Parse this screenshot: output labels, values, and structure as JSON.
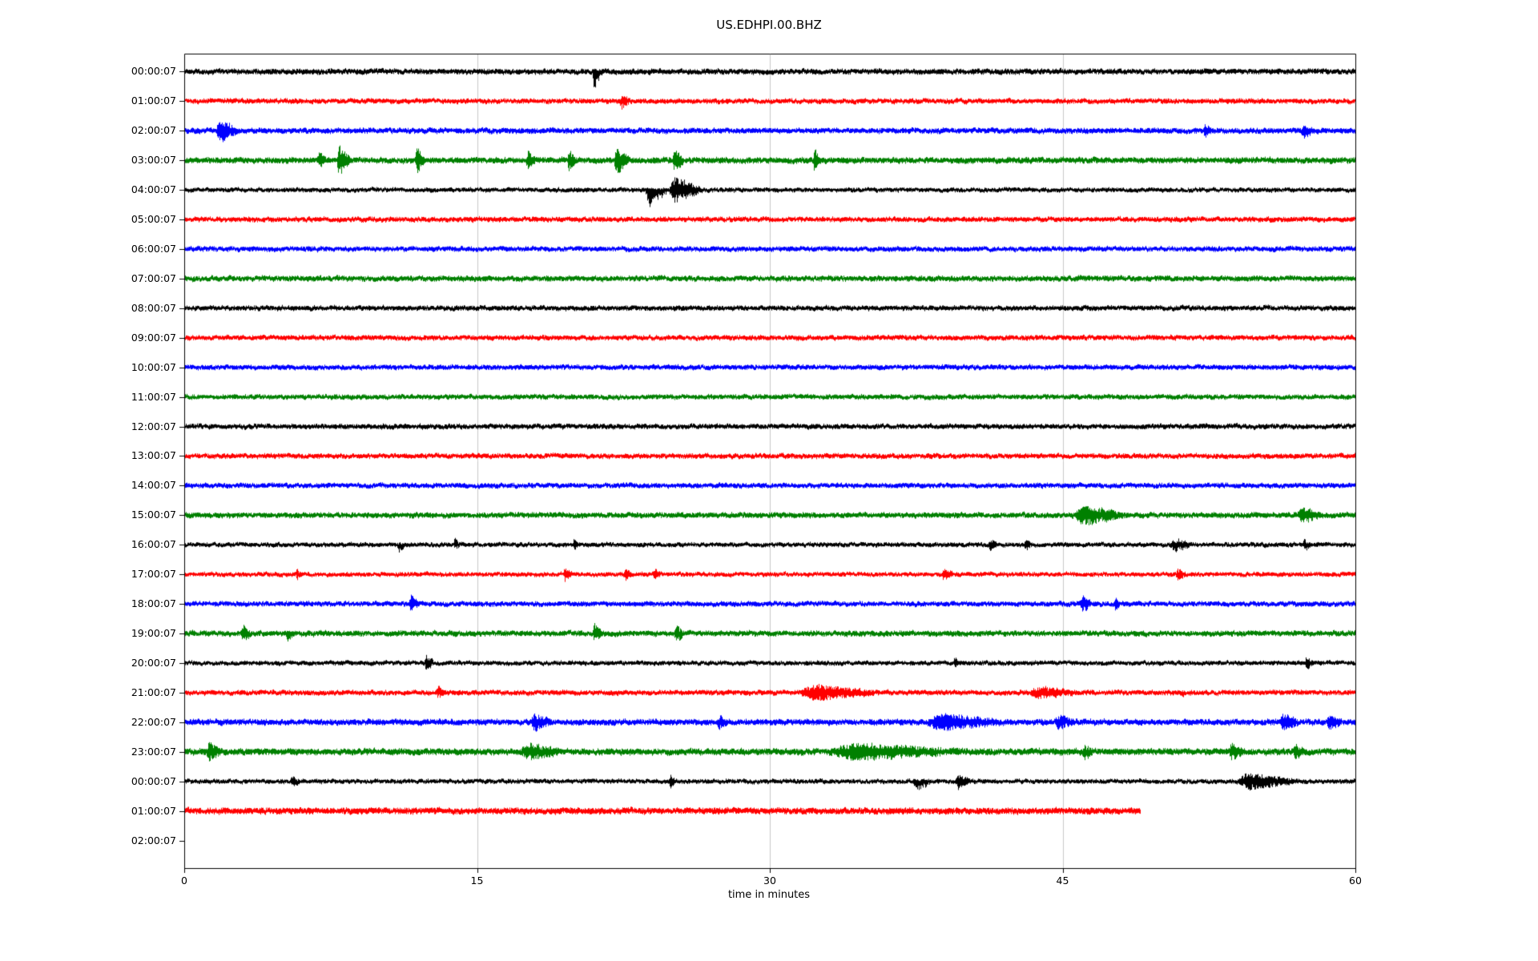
{
  "chart_data": {
    "type": "line",
    "subtype": "seismogram-helicorder",
    "title": "US.EDHPI.00.BHZ",
    "xlabel": "time in minutes",
    "x_range": [
      0,
      60
    ],
    "x_ticks": [
      0,
      15,
      30,
      45,
      60
    ],
    "grid": "vertical-at-x-ticks",
    "grid_color": "#c9c9c9",
    "trace_colors_cycle": [
      "#000000",
      "#ff0000",
      "#0000ff",
      "#008000"
    ],
    "rows": [
      {
        "label": "00:00:07",
        "color": "#000000",
        "base": 1.1,
        "end": 60,
        "events": [
          {
            "t": 20.9,
            "dur": 0.5,
            "amp": 6,
            "dir": -1
          }
        ]
      },
      {
        "label": "01:00:07",
        "color": "#ff0000",
        "base": 1.0,
        "end": 60,
        "events": [
          {
            "t": 22.3,
            "dur": 0.5,
            "amp": 2.5,
            "dir": 0
          }
        ]
      },
      {
        "label": "02:00:07",
        "color": "#0000ff",
        "base": 1.1,
        "end": 60,
        "events": [
          {
            "t": 1.6,
            "dur": 1.2,
            "amp": 3.5,
            "dir": 0
          },
          {
            "t": 52.2,
            "dur": 0.5,
            "amp": 1.8,
            "dir": 0
          },
          {
            "t": 57.2,
            "dur": 0.7,
            "amp": 2,
            "dir": 0
          }
        ]
      },
      {
        "label": "03:00:07",
        "color": "#008000",
        "base": 1.2,
        "end": 60,
        "events": [
          {
            "t": 6.8,
            "dur": 0.5,
            "amp": 2,
            "dir": 0
          },
          {
            "t": 7.8,
            "dur": 0.7,
            "amp": 5,
            "dir": 0
          },
          {
            "t": 11.8,
            "dur": 0.6,
            "amp": 3.5,
            "dir": 0
          },
          {
            "t": 17.5,
            "dur": 0.5,
            "amp": 2.8,
            "dir": 0
          },
          {
            "t": 19.6,
            "dur": 0.5,
            "amp": 2.8,
            "dir": 0
          },
          {
            "t": 22.0,
            "dur": 0.8,
            "amp": 4,
            "dir": 0
          },
          {
            "t": 25.0,
            "dur": 0.6,
            "amp": 3.2,
            "dir": 0
          },
          {
            "t": 32.2,
            "dur": 0.4,
            "amp": 3.2,
            "dir": 0
          }
        ]
      },
      {
        "label": "04:00:07",
        "color": "#000000",
        "base": 0.9,
        "end": 60,
        "events": [
          {
            "t": 23.6,
            "dur": 1.2,
            "amp": 7,
            "dir": -1
          },
          {
            "t": 24.8,
            "dur": 1.8,
            "amp": 5,
            "dir": 0
          }
        ]
      },
      {
        "label": "05:00:07",
        "color": "#ff0000",
        "base": 1.0,
        "end": 60,
        "events": []
      },
      {
        "label": "06:00:07",
        "color": "#0000ff",
        "base": 1.0,
        "end": 60,
        "events": []
      },
      {
        "label": "07:00:07",
        "color": "#008000",
        "base": 1.1,
        "end": 60,
        "events": []
      },
      {
        "label": "08:00:07",
        "color": "#000000",
        "base": 1.0,
        "end": 60,
        "events": []
      },
      {
        "label": "09:00:07",
        "color": "#ff0000",
        "base": 1.0,
        "end": 60,
        "events": []
      },
      {
        "label": "10:00:07",
        "color": "#0000ff",
        "base": 1.0,
        "end": 60,
        "events": []
      },
      {
        "label": "11:00:07",
        "color": "#008000",
        "base": 1.0,
        "end": 60,
        "events": []
      },
      {
        "label": "12:00:07",
        "color": "#000000",
        "base": 1.0,
        "end": 60,
        "events": []
      },
      {
        "label": "13:00:07",
        "color": "#ff0000",
        "base": 1.0,
        "end": 60,
        "events": []
      },
      {
        "label": "14:00:07",
        "color": "#0000ff",
        "base": 1.0,
        "end": 60,
        "events": []
      },
      {
        "label": "15:00:07",
        "color": "#008000",
        "base": 1.1,
        "end": 60,
        "events": [
          {
            "t": 45.6,
            "dur": 2.6,
            "amp": 3,
            "dir": 0
          },
          {
            "t": 57.0,
            "dur": 1.4,
            "amp": 2.2,
            "dir": 0
          }
        ]
      },
      {
        "label": "16:00:07",
        "color": "#000000",
        "base": 0.9,
        "end": 60,
        "events": [
          {
            "t": 10.9,
            "dur": 0.4,
            "amp": 3,
            "dir": -1
          },
          {
            "t": 13.8,
            "dur": 0.3,
            "amp": 2,
            "dir": 0
          },
          {
            "t": 19.9,
            "dur": 0.3,
            "amp": 2,
            "dir": 0
          },
          {
            "t": 41.2,
            "dur": 0.5,
            "amp": 2,
            "dir": 0
          },
          {
            "t": 43.0,
            "dur": 0.4,
            "amp": 2,
            "dir": 0
          },
          {
            "t": 50.5,
            "dur": 1.2,
            "amp": 2.2,
            "dir": 0
          },
          {
            "t": 57.3,
            "dur": 0.4,
            "amp": 2,
            "dir": 0
          }
        ]
      },
      {
        "label": "17:00:07",
        "color": "#ff0000",
        "base": 0.9,
        "end": 60,
        "events": [
          {
            "t": 5.7,
            "dur": 0.3,
            "amp": 1.8,
            "dir": 0
          },
          {
            "t": 19.4,
            "dur": 0.5,
            "amp": 2.2,
            "dir": 0
          },
          {
            "t": 22.5,
            "dur": 0.4,
            "amp": 2.5,
            "dir": 0
          },
          {
            "t": 24.0,
            "dur": 0.4,
            "amp": 2,
            "dir": 0
          },
          {
            "t": 38.8,
            "dur": 0.6,
            "amp": 2,
            "dir": 0
          },
          {
            "t": 50.8,
            "dur": 0.5,
            "amp": 1.8,
            "dir": 0
          }
        ]
      },
      {
        "label": "18:00:07",
        "color": "#0000ff",
        "base": 1.0,
        "end": 60,
        "events": [
          {
            "t": 11.5,
            "dur": 0.5,
            "amp": 3.2,
            "dir": 0
          },
          {
            "t": 45.9,
            "dur": 0.6,
            "amp": 2.8,
            "dir": 0
          },
          {
            "t": 47.6,
            "dur": 0.4,
            "amp": 1.8,
            "dir": 0
          }
        ]
      },
      {
        "label": "19:00:07",
        "color": "#008000",
        "base": 1.1,
        "end": 60,
        "events": [
          {
            "t": 2.9,
            "dur": 0.5,
            "amp": 2.8,
            "dir": 0
          },
          {
            "t": 5.2,
            "dur": 0.4,
            "amp": 2.8,
            "dir": -1
          },
          {
            "t": 20.9,
            "dur": 0.5,
            "amp": 3,
            "dir": 0
          },
          {
            "t": 25.1,
            "dur": 0.5,
            "amp": 2.6,
            "dir": 0
          }
        ]
      },
      {
        "label": "20:00:07",
        "color": "#000000",
        "base": 0.9,
        "end": 60,
        "events": [
          {
            "t": 12.3,
            "dur": 0.5,
            "amp": 3,
            "dir": 0
          },
          {
            "t": 39.4,
            "dur": 0.3,
            "amp": 1.8,
            "dir": 0
          },
          {
            "t": 57.4,
            "dur": 0.4,
            "amp": 2.5,
            "dir": 0
          }
        ]
      },
      {
        "label": "21:00:07",
        "color": "#ff0000",
        "base": 1.0,
        "end": 60,
        "events": [
          {
            "t": 12.9,
            "dur": 0.4,
            "amp": 2,
            "dir": 0
          },
          {
            "t": 31.5,
            "dur": 4.2,
            "amp": 2.6,
            "dir": 0
          },
          {
            "t": 43.3,
            "dur": 2.6,
            "amp": 1.8,
            "dir": 0
          },
          {
            "t": 51.0,
            "dur": 0.3,
            "amp": 1.8,
            "dir": -1
          }
        ]
      },
      {
        "label": "22:00:07",
        "color": "#0000ff",
        "base": 1.2,
        "end": 60,
        "events": [
          {
            "t": 17.7,
            "dur": 1.2,
            "amp": 2.2,
            "dir": 0
          },
          {
            "t": 27.3,
            "dur": 0.5,
            "amp": 1.6,
            "dir": 0
          },
          {
            "t": 38.0,
            "dur": 4.0,
            "amp": 2.2,
            "dir": 0
          },
          {
            "t": 44.6,
            "dur": 1.0,
            "amp": 1.8,
            "dir": 0
          },
          {
            "t": 56.1,
            "dur": 1.0,
            "amp": 2.2,
            "dir": 0
          },
          {
            "t": 58.5,
            "dur": 0.8,
            "amp": 2,
            "dir": 0
          }
        ]
      },
      {
        "label": "23:00:07",
        "color": "#008000",
        "base": 1.3,
        "end": 60,
        "events": [
          {
            "t": 1.1,
            "dur": 0.8,
            "amp": 2.2,
            "dir": 0
          },
          {
            "t": 17.2,
            "dur": 2.2,
            "amp": 2,
            "dir": 0
          },
          {
            "t": 33.0,
            "dur": 7.0,
            "amp": 1.9,
            "dir": 0
          },
          {
            "t": 46.0,
            "dur": 0.6,
            "amp": 1.6,
            "dir": 0
          },
          {
            "t": 53.5,
            "dur": 0.8,
            "amp": 1.8,
            "dir": 0
          },
          {
            "t": 56.8,
            "dur": 0.6,
            "amp": 1.8,
            "dir": 0
          }
        ]
      },
      {
        "label": "00:00:07",
        "color": "#000000",
        "base": 0.9,
        "end": 60,
        "events": [
          {
            "t": 5.4,
            "dur": 0.5,
            "amp": 2,
            "dir": 0
          },
          {
            "t": 24.8,
            "dur": 0.4,
            "amp": 2.5,
            "dir": 0
          },
          {
            "t": 37.3,
            "dur": 1.0,
            "amp": 4,
            "dir": -1
          },
          {
            "t": 39.5,
            "dur": 0.8,
            "amp": 2.5,
            "dir": 0
          },
          {
            "t": 53.9,
            "dur": 3.2,
            "amp": 3,
            "dir": 0
          }
        ]
      },
      {
        "label": "01:00:07",
        "color": "#ff0000",
        "base": 1.3,
        "end": 49,
        "events": []
      },
      {
        "label": "02:00:07",
        "color": null,
        "base": 0,
        "end": 0,
        "events": []
      }
    ]
  }
}
